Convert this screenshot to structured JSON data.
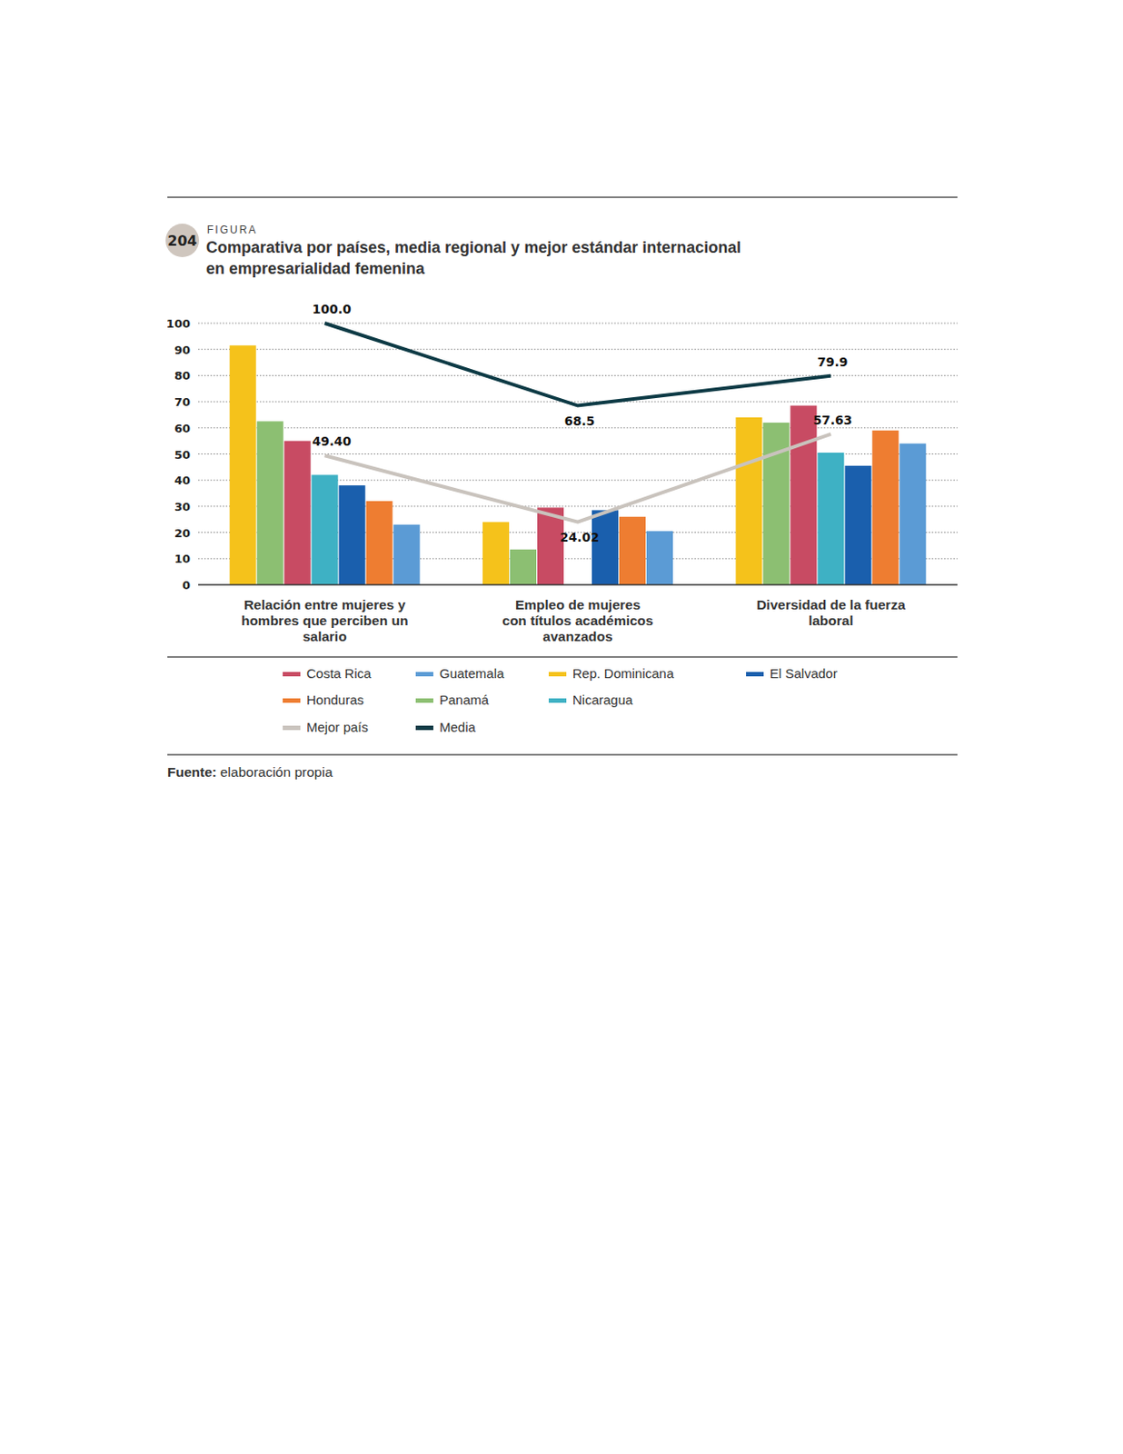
{
  "chart_data": {
    "type": "bar",
    "figure_label": "FIGURA",
    "figure_number": "204",
    "title": "Comparativa por países, media regional y mejor estándar internacional en empresarialidad femenina",
    "categories": [
      "Relación entre mujeres y hombres que perciben un salario",
      "Empleo de mujeres con títulos académicos avanzados",
      "Diversidad de la fuerza laboral"
    ],
    "series": [
      {
        "name": "Costa Rica",
        "color": "#c84b63",
        "values": [
          55,
          29.5,
          68.5
        ]
      },
      {
        "name": "Guatemala",
        "color": "#5b9bd5",
        "values": [
          23,
          20.5,
          54
        ]
      },
      {
        "name": "Rep. Dominicana",
        "color": "#f5c21b",
        "values": [
          91.5,
          24,
          64
        ]
      },
      {
        "name": "El Salvador",
        "color": "#1a5fad",
        "values": [
          38,
          28.5,
          45.5
        ]
      },
      {
        "name": "Honduras",
        "color": "#ee7d31",
        "values": [
          32,
          26,
          59
        ]
      },
      {
        "name": "Panamá",
        "color": "#8cbf72",
        "values": [
          62.5,
          13.5,
          62
        ]
      },
      {
        "name": "Nicaragua",
        "color": "#3eb1c4",
        "values": [
          42,
          null,
          50.5
        ]
      },
      {
        "name": "Mejor país",
        "type": "line",
        "color": "#c9c3bd",
        "values": [
          49.4,
          24.02,
          57.63
        ],
        "data_labels": true,
        "value_labels": [
          "49.40",
          "24.02",
          "57.63"
        ]
      },
      {
        "name": "Media",
        "type": "line",
        "color": "#0d3a45",
        "values": [
          100,
          68.5,
          79.9
        ],
        "data_labels": true,
        "value_labels": [
          "100.0",
          "68.5",
          "79.9"
        ]
      }
    ],
    "ylim": [
      0,
      100
    ],
    "yticks": [
      0,
      10,
      20,
      30,
      40,
      50,
      60,
      70,
      80,
      90,
      100
    ],
    "grid": true,
    "legend": "bottom",
    "source": {
      "label": "Fuente:",
      "text": "elaboración propia"
    }
  }
}
